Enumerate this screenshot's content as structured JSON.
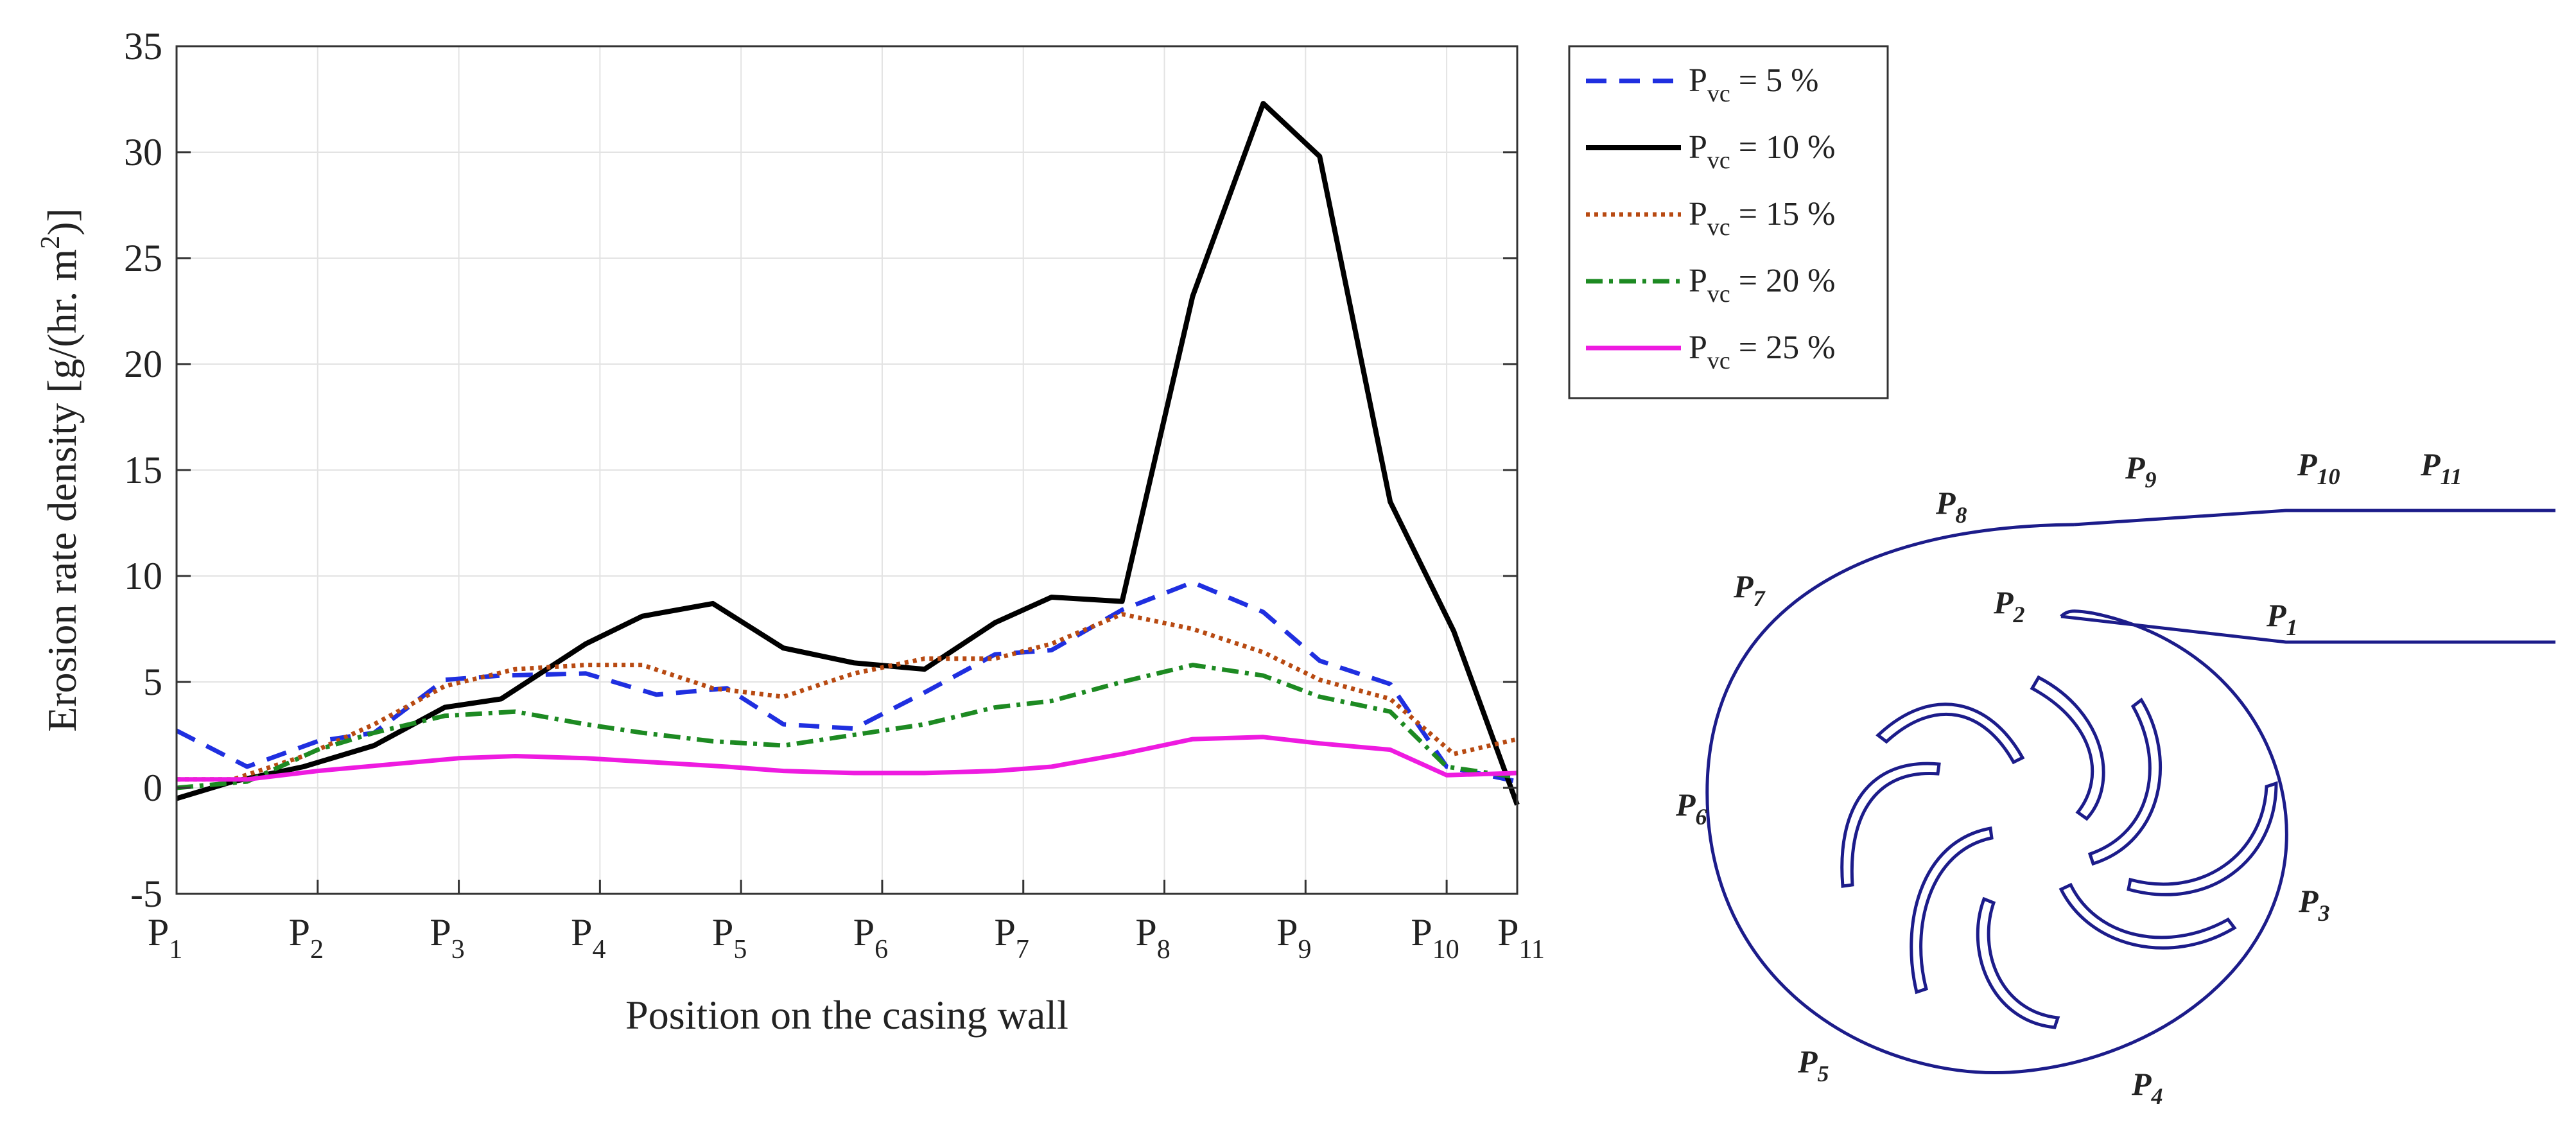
{
  "chart_data": {
    "type": "line",
    "title": "",
    "xlabel": "Position on the casing wall",
    "ylabel": "Erosion rate density [g/(hr. m2)]",
    "ylim": [
      -5,
      35
    ],
    "yticks": [
      -5,
      0,
      5,
      10,
      15,
      20,
      25,
      30,
      35
    ],
    "xlim": [
      1,
      10.5
    ],
    "grid": true,
    "legend_position": "outside-top-right",
    "categories": [
      {
        "pos": 1,
        "base": "P",
        "sub": "1"
      },
      {
        "pos": 2,
        "base": "P",
        "sub": "2"
      },
      {
        "pos": 3,
        "base": "P",
        "sub": "3"
      },
      {
        "pos": 4,
        "base": "P",
        "sub": "4"
      },
      {
        "pos": 5,
        "base": "P",
        "sub": "5"
      },
      {
        "pos": 6,
        "base": "P",
        "sub": "6"
      },
      {
        "pos": 7,
        "base": "P",
        "sub": "7"
      },
      {
        "pos": 8,
        "base": "P",
        "sub": "8"
      },
      {
        "pos": 9,
        "base": "P",
        "sub": "9"
      },
      {
        "pos": 10,
        "base": "P",
        "sub": "10"
      },
      {
        "pos": 10.5,
        "base": "P",
        "sub": "11"
      }
    ],
    "series": [
      {
        "name": "Pvc = 5 %",
        "label_base": "P",
        "label_sub": "vc",
        "label_rest": " = 5 %",
        "color": "#1f2fe0",
        "dash": "32 20",
        "x": [
          1,
          1.5,
          2,
          2.4,
          2.9,
          3.3,
          3.9,
          4.4,
          4.9,
          5.3,
          5.8,
          6.3,
          6.8,
          7.2,
          7.7,
          8.2,
          8.7,
          9.1,
          9.6,
          10,
          10.5
        ],
        "values": [
          2.7,
          1.0,
          2.2,
          2.6,
          5.1,
          5.3,
          5.4,
          4.4,
          4.7,
          3.0,
          2.8,
          4.5,
          6.3,
          6.5,
          8.4,
          9.7,
          8.3,
          6.0,
          4.9,
          1.0,
          0.3
        ]
      },
      {
        "name": "Pvc = 10 %",
        "label_base": "P",
        "label_sub": "vc",
        "label_rest": " = 10 %",
        "color": "#000000",
        "dash": "",
        "x": [
          1,
          1.4,
          1.9,
          2.4,
          2.9,
          3.3,
          3.9,
          4.3,
          4.8,
          5.3,
          5.8,
          6.3,
          6.8,
          7.2,
          7.7,
          8.2,
          8.7,
          9.1,
          9.6,
          10.05,
          10.5
        ],
        "values": [
          -0.5,
          0.3,
          1.0,
          2.0,
          3.8,
          4.2,
          6.8,
          8.1,
          8.7,
          6.6,
          5.9,
          5.6,
          7.8,
          9.0,
          8.8,
          23.2,
          32.3,
          29.8,
          13.5,
          7.4,
          -0.8
        ]
      },
      {
        "name": "Pvc = 15 %",
        "label_base": "P",
        "label_sub": "vc",
        "label_rest": " = 15 %",
        "color": "#b84a12",
        "dash": "6 7",
        "x": [
          1,
          1.4,
          1.9,
          2.4,
          2.9,
          3.4,
          3.9,
          4.3,
          4.8,
          5.3,
          5.8,
          6.3,
          6.8,
          7.2,
          7.7,
          8.2,
          8.7,
          9.1,
          9.6,
          10.05,
          10.5
        ],
        "values": [
          0.4,
          0.4,
          1.5,
          3.0,
          4.8,
          5.6,
          5.8,
          5.8,
          4.7,
          4.3,
          5.4,
          6.1,
          6.1,
          6.8,
          8.2,
          7.5,
          6.4,
          5.1,
          4.2,
          1.6,
          2.3
        ]
      },
      {
        "name": "Pvc = 20 %",
        "label_base": "P",
        "label_sub": "vc",
        "label_rest": " = 20 %",
        "color": "#1d8a22",
        "dash": "26 10 6 10",
        "x": [
          1,
          1.5,
          2,
          2.4,
          2.9,
          3.4,
          3.9,
          4.3,
          4.8,
          5.3,
          5.8,
          6.3,
          6.8,
          7.2,
          7.7,
          8.2,
          8.7,
          9.1,
          9.6,
          10,
          10.5
        ],
        "values": [
          0.0,
          0.3,
          1.8,
          2.6,
          3.4,
          3.6,
          3.0,
          2.6,
          2.2,
          2.0,
          2.5,
          3.0,
          3.8,
          4.1,
          5.0,
          5.8,
          5.3,
          4.3,
          3.6,
          1.0,
          0.5
        ]
      },
      {
        "name": "Pvc = 25 %",
        "label_base": "P",
        "label_sub": "vc",
        "label_rest": " = 25 %",
        "color": "#ee1be0",
        "dash": "",
        "x": [
          1,
          1.5,
          2,
          2.5,
          3,
          3.4,
          3.9,
          4.4,
          4.9,
          5.3,
          5.8,
          6.3,
          6.8,
          7.2,
          7.7,
          8.2,
          8.7,
          9.1,
          9.6,
          10,
          10.5
        ],
        "values": [
          0.4,
          0.4,
          0.8,
          1.1,
          1.4,
          1.5,
          1.4,
          1.2,
          1.0,
          0.8,
          0.7,
          0.7,
          0.8,
          1.0,
          1.6,
          2.3,
          2.4,
          2.1,
          1.8,
          0.6,
          0.7
        ]
      }
    ]
  },
  "diagram": {
    "description_labels": [
      {
        "id": "p1",
        "base": "P",
        "sub": "1"
      },
      {
        "id": "p2",
        "base": "P",
        "sub": "2"
      },
      {
        "id": "p3",
        "base": "P",
        "sub": "3"
      },
      {
        "id": "p4",
        "base": "P",
        "sub": "4"
      },
      {
        "id": "p5",
        "base": "P",
        "sub": "5"
      },
      {
        "id": "p6",
        "base": "P",
        "sub": "6"
      },
      {
        "id": "p7",
        "base": "P",
        "sub": "7"
      },
      {
        "id": "p8",
        "base": "P",
        "sub": "8"
      },
      {
        "id": "p9",
        "base": "P",
        "sub": "9"
      },
      {
        "id": "p10",
        "base": "P",
        "sub": "10"
      },
      {
        "id": "p11",
        "base": "P",
        "sub": "11"
      }
    ],
    "line_color": "#1c1c8a"
  }
}
